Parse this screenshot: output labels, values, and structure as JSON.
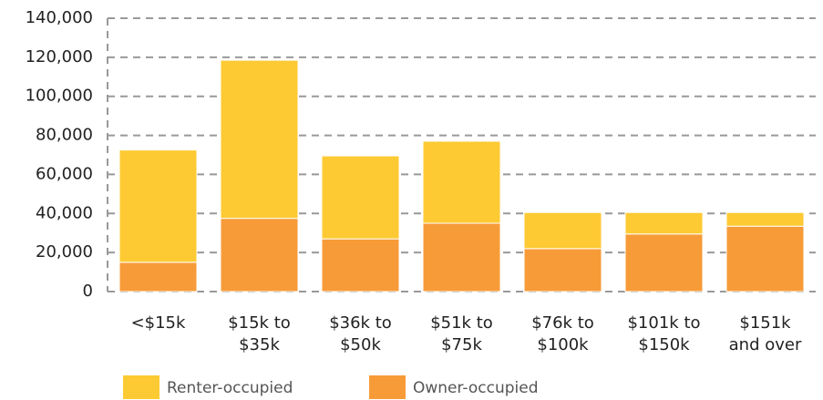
{
  "chart_data": {
    "type": "bar",
    "stacked": true,
    "categories": [
      "<$15k",
      "$15k to\n$35k",
      "$36k to\n$50k",
      "$51k to\n$75k",
      "$76k to\n$100k",
      "$101k to\n$150k",
      "$151k\nand over"
    ],
    "series": [
      {
        "name": "Renter-occupied",
        "color": "#fdca33",
        "values": [
          57500,
          81000,
          42500,
          42000,
          18500,
          11000,
          7000
        ]
      },
      {
        "name": "Owner-occupied",
        "color": "#f79b38",
        "values": [
          15000,
          37500,
          27000,
          35000,
          22000,
          29500,
          33500
        ]
      }
    ],
    "ylim": [
      0,
      140000
    ],
    "yticks": [
      0,
      {
        "value": 20000,
        "label": "20,000"
      },
      {
        "value": 40000,
        "label": "40,000"
      },
      {
        "value": 60000,
        "label": "60,000"
      },
      {
        "value": 80000,
        "label": "80,000"
      },
      {
        "value": 100000,
        "label": "100,000"
      },
      {
        "value": 120000,
        "label": "120,000"
      },
      {
        "value": 140000,
        "label": "140,000"
      }
    ],
    "grid": true,
    "legend": "bottom"
  }
}
